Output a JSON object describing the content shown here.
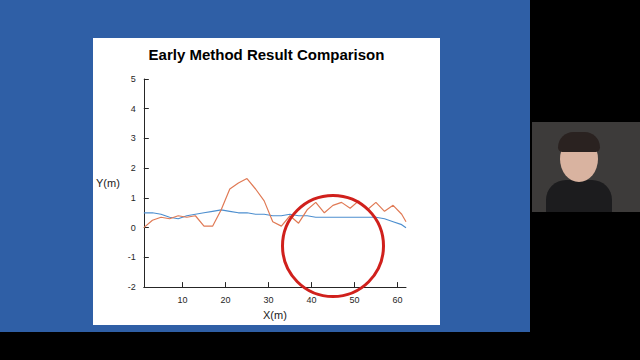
{
  "chart_data": {
    "type": "line",
    "title": "Early Method Result Comparison",
    "x_label": "X(m)",
    "y_label": "Y(m)",
    "x": [
      1,
      3,
      5,
      7,
      9,
      11,
      13,
      15,
      17,
      19,
      21,
      23,
      25,
      27,
      29,
      31,
      33,
      35,
      37,
      39,
      41,
      43,
      45,
      47,
      49,
      51,
      53,
      55,
      57,
      59,
      61,
      62
    ],
    "series": [
      {
        "color": "#4d8fcf",
        "values": [
          0.5,
          0.5,
          0.45,
          0.35,
          0.3,
          0.4,
          0.45,
          0.5,
          0.55,
          0.6,
          0.55,
          0.5,
          0.5,
          0.45,
          0.45,
          0.4,
          0.4,
          0.45,
          0.4,
          0.4,
          0.35,
          0.35,
          0.35,
          0.35,
          0.35,
          0.35,
          0.35,
          0.35,
          0.3,
          0.2,
          0.1,
          0
        ]
      },
      {
        "color": "#e07a55",
        "values": [
          0,
          0.25,
          0.35,
          0.3,
          0.4,
          0.35,
          0.4,
          0.05,
          0.05,
          0.6,
          1.3,
          1.5,
          1.65,
          1.3,
          0.9,
          0.2,
          0.05,
          0.4,
          0.15,
          0.6,
          0.85,
          0.5,
          0.75,
          0.85,
          0.65,
          0.9,
          0.6,
          0.85,
          0.55,
          0.75,
          0.45,
          0.2
        ]
      }
    ],
    "xlim": [
      1,
      62
    ],
    "xticks": [
      10,
      20,
      30,
      40,
      50,
      60
    ],
    "ylim": [
      -2,
      5
    ],
    "yticks": [
      -2,
      -1,
      0,
      1,
      2,
      3,
      4,
      5
    ],
    "grid": false
  }
}
